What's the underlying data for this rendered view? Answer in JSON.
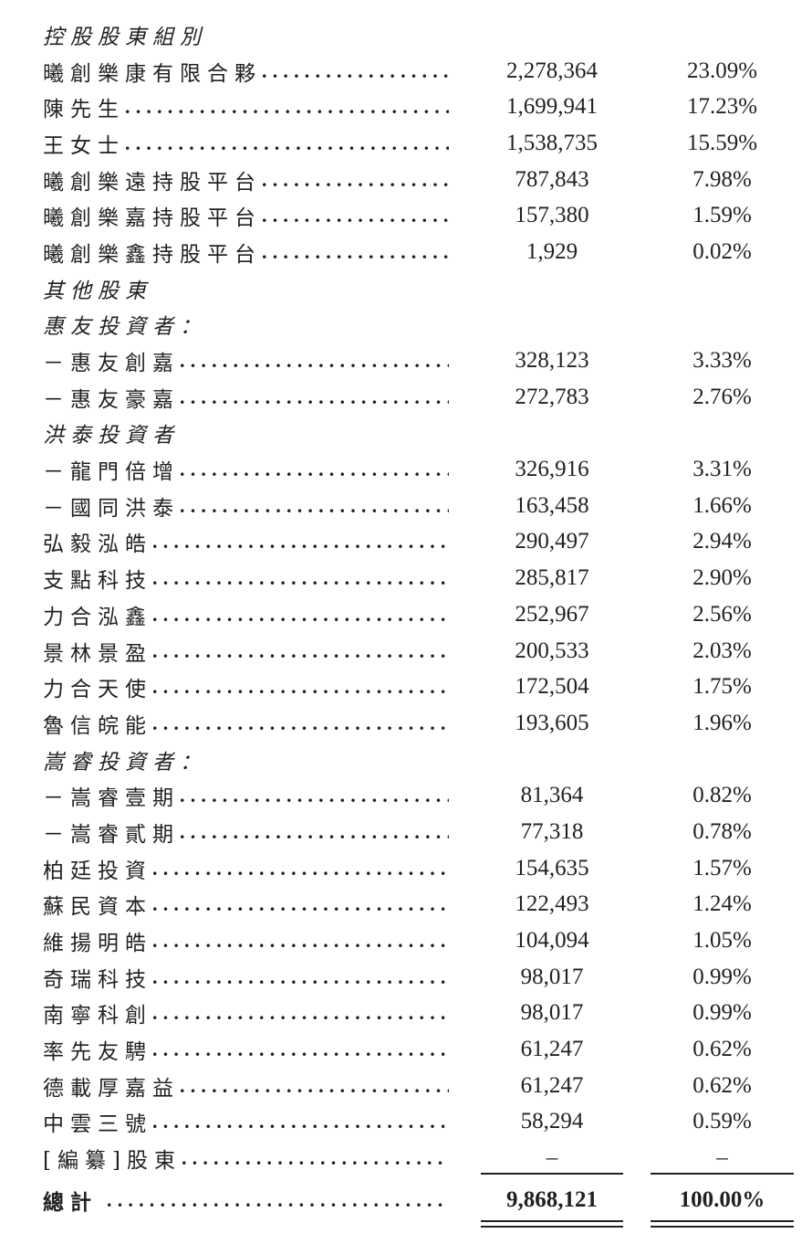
{
  "rows": [
    {
      "type": "heading",
      "label": "控股股東組別"
    },
    {
      "type": "item",
      "label": "曦創樂康有限合夥",
      "shares": "2,278,364",
      "percent": "23.09%"
    },
    {
      "type": "item",
      "label": "陳先生",
      "shares": "1,699,941",
      "percent": "17.23%"
    },
    {
      "type": "item",
      "label": "王女士",
      "shares": "1,538,735",
      "percent": "15.59%"
    },
    {
      "type": "item",
      "label": "曦創樂遠持股平台",
      "shares": "787,843",
      "percent": "7.98%"
    },
    {
      "type": "item",
      "label": "曦創樂嘉持股平台",
      "shares": "157,380",
      "percent": "1.59%"
    },
    {
      "type": "item",
      "label": "曦創樂鑫持股平台",
      "shares": "1,929",
      "percent": "0.02%"
    },
    {
      "type": "heading",
      "label": "其他股東"
    },
    {
      "type": "heading",
      "label": "惠友投資者："
    },
    {
      "type": "item",
      "label": "－惠友創嘉",
      "shares": "328,123",
      "percent": "3.33%"
    },
    {
      "type": "item",
      "label": "－惠友豪嘉",
      "shares": "272,783",
      "percent": "2.76%"
    },
    {
      "type": "heading",
      "label": "洪泰投資者"
    },
    {
      "type": "item",
      "label": "－龍門倍增",
      "shares": "326,916",
      "percent": "3.31%"
    },
    {
      "type": "item",
      "label": "－國同洪泰",
      "shares": "163,458",
      "percent": "1.66%"
    },
    {
      "type": "item",
      "label": "弘毅泓皓",
      "shares": "290,497",
      "percent": "2.94%"
    },
    {
      "type": "item",
      "label": "支點科技",
      "shares": "285,817",
      "percent": "2.90%"
    },
    {
      "type": "item",
      "label": "力合泓鑫",
      "shares": "252,967",
      "percent": "2.56%"
    },
    {
      "type": "item",
      "label": "景林景盈",
      "shares": "200,533",
      "percent": "2.03%"
    },
    {
      "type": "item",
      "label": "力合天使",
      "shares": "172,504",
      "percent": "1.75%"
    },
    {
      "type": "item",
      "label": "魯信皖能",
      "shares": "193,605",
      "percent": "1.96%"
    },
    {
      "type": "heading",
      "label": "嵩睿投資者："
    },
    {
      "type": "item",
      "label": "－嵩睿壹期",
      "shares": "81,364",
      "percent": "0.82%"
    },
    {
      "type": "item",
      "label": "－嵩睿貳期",
      "shares": "77,318",
      "percent": "0.78%"
    },
    {
      "type": "item",
      "label": "柏廷投資",
      "shares": "154,635",
      "percent": "1.57%"
    },
    {
      "type": "item",
      "label": "蘇民資本",
      "shares": "122,493",
      "percent": "1.24%"
    },
    {
      "type": "item",
      "label": "維揚明皓",
      "shares": "104,094",
      "percent": "1.05%"
    },
    {
      "type": "item",
      "label": "奇瑞科技",
      "shares": "98,017",
      "percent": "0.99%"
    },
    {
      "type": "item",
      "label": "南寧科創",
      "shares": "98,017",
      "percent": "0.99%"
    },
    {
      "type": "item",
      "label": "率先友騁",
      "shares": "61,247",
      "percent": "0.62%"
    },
    {
      "type": "item",
      "label": "德載厚嘉益",
      "shares": "61,247",
      "percent": "0.62%"
    },
    {
      "type": "item",
      "label": "中雲三號",
      "shares": "58,294",
      "percent": "0.59%"
    },
    {
      "type": "item",
      "label": "[編纂]股東",
      "shares": "–",
      "percent": "–"
    }
  ],
  "total": {
    "label": "總計",
    "shares": "9,868,121",
    "percent": "100.00%"
  },
  "leader": "..............................................."
}
